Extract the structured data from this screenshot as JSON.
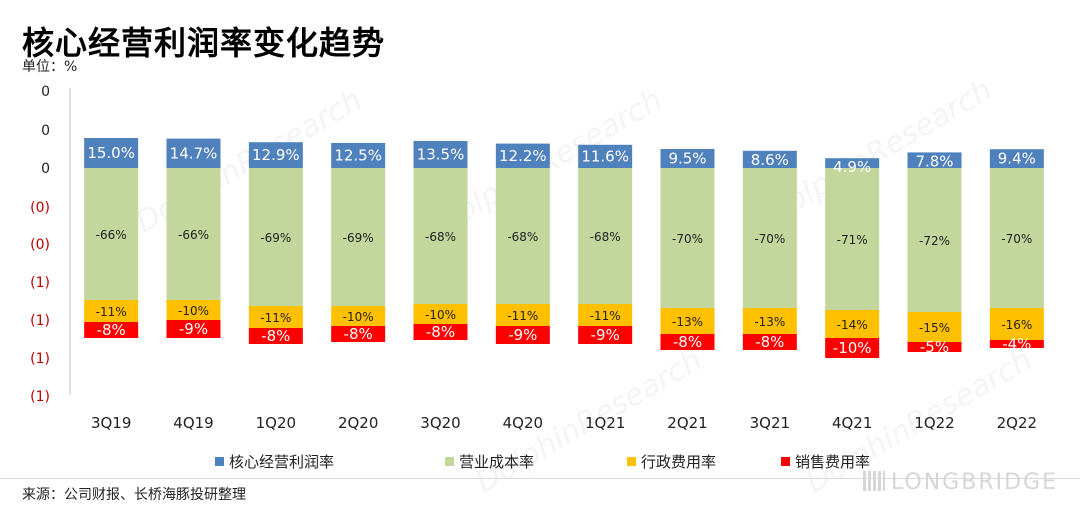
{
  "header": {
    "title": "核心经营利润率变化趋势",
    "unit": "单位：%"
  },
  "footer": {
    "source": "来源：公司财报、长桥海豚投研整理",
    "brand": "LONGBRIDGE"
  },
  "watermark": "DolphinResearch",
  "colors": {
    "profit": "#4f81bd",
    "cost": "#c3d69b",
    "admin": "#ffc000",
    "sales": "#ff0000",
    "neg_tick": "#c00000"
  },
  "chart_data": {
    "type": "bar",
    "stacked": true,
    "categories": [
      "3Q19",
      "4Q19",
      "1Q20",
      "2Q20",
      "3Q20",
      "4Q20",
      "1Q21",
      "2Q21",
      "3Q21",
      "4Q21",
      "1Q22",
      "2Q22"
    ],
    "series": [
      {
        "name": "核心经营利润率",
        "values": [
          15.0,
          14.7,
          12.9,
          12.5,
          13.5,
          12.2,
          11.6,
          9.5,
          8.6,
          4.9,
          7.8,
          9.4
        ],
        "labels": [
          "15.0%",
          "14.7%",
          "12.9%",
          "12.5%",
          "13.5%",
          "12.2%",
          "11.6%",
          "9.5%",
          "8.6%",
          "4.9%",
          "7.8%",
          "9.4%"
        ]
      },
      {
        "name": "营业成本率",
        "values": [
          -66,
          -66,
          -69,
          -69,
          -68,
          -68,
          -68,
          -70,
          -70,
          -71,
          -72,
          -70
        ],
        "labels": [
          "-66%",
          "-66%",
          "-69%",
          "-69%",
          "-68%",
          "-68%",
          "-68%",
          "-70%",
          "-70%",
          "-71%",
          "-72%",
          "-70%"
        ]
      },
      {
        "name": "行政费用率",
        "values": [
          -11,
          -10,
          -11,
          -10,
          -10,
          -11,
          -11,
          -13,
          -13,
          -14,
          -15,
          -16
        ],
        "labels": [
          "-11%",
          "-10%",
          "-11%",
          "-10%",
          "-10%",
          "-11%",
          "-11%",
          "-13%",
          "-13%",
          "-14%",
          "-15%",
          "-16%"
        ]
      },
      {
        "name": "销售费用率",
        "values": [
          -8,
          -9,
          -8,
          -8,
          -8,
          -9,
          -9,
          -8,
          -8,
          -10,
          -5,
          -4
        ],
        "labels": [
          "-8%",
          "-9%",
          "-8%",
          "-8%",
          "-8%",
          "-9%",
          "-9%",
          "-8%",
          "-8%",
          "-10%",
          "-5%",
          "-4%"
        ]
      }
    ],
    "y_tick_labels": [
      "0",
      "0",
      "0",
      "(0)",
      "(0)",
      "(1)",
      "(1)",
      "(1)",
      "(1)"
    ],
    "ylim": [
      -120,
      40
    ],
    "xlabel": "",
    "ylabel": "",
    "legend": "bottom"
  }
}
